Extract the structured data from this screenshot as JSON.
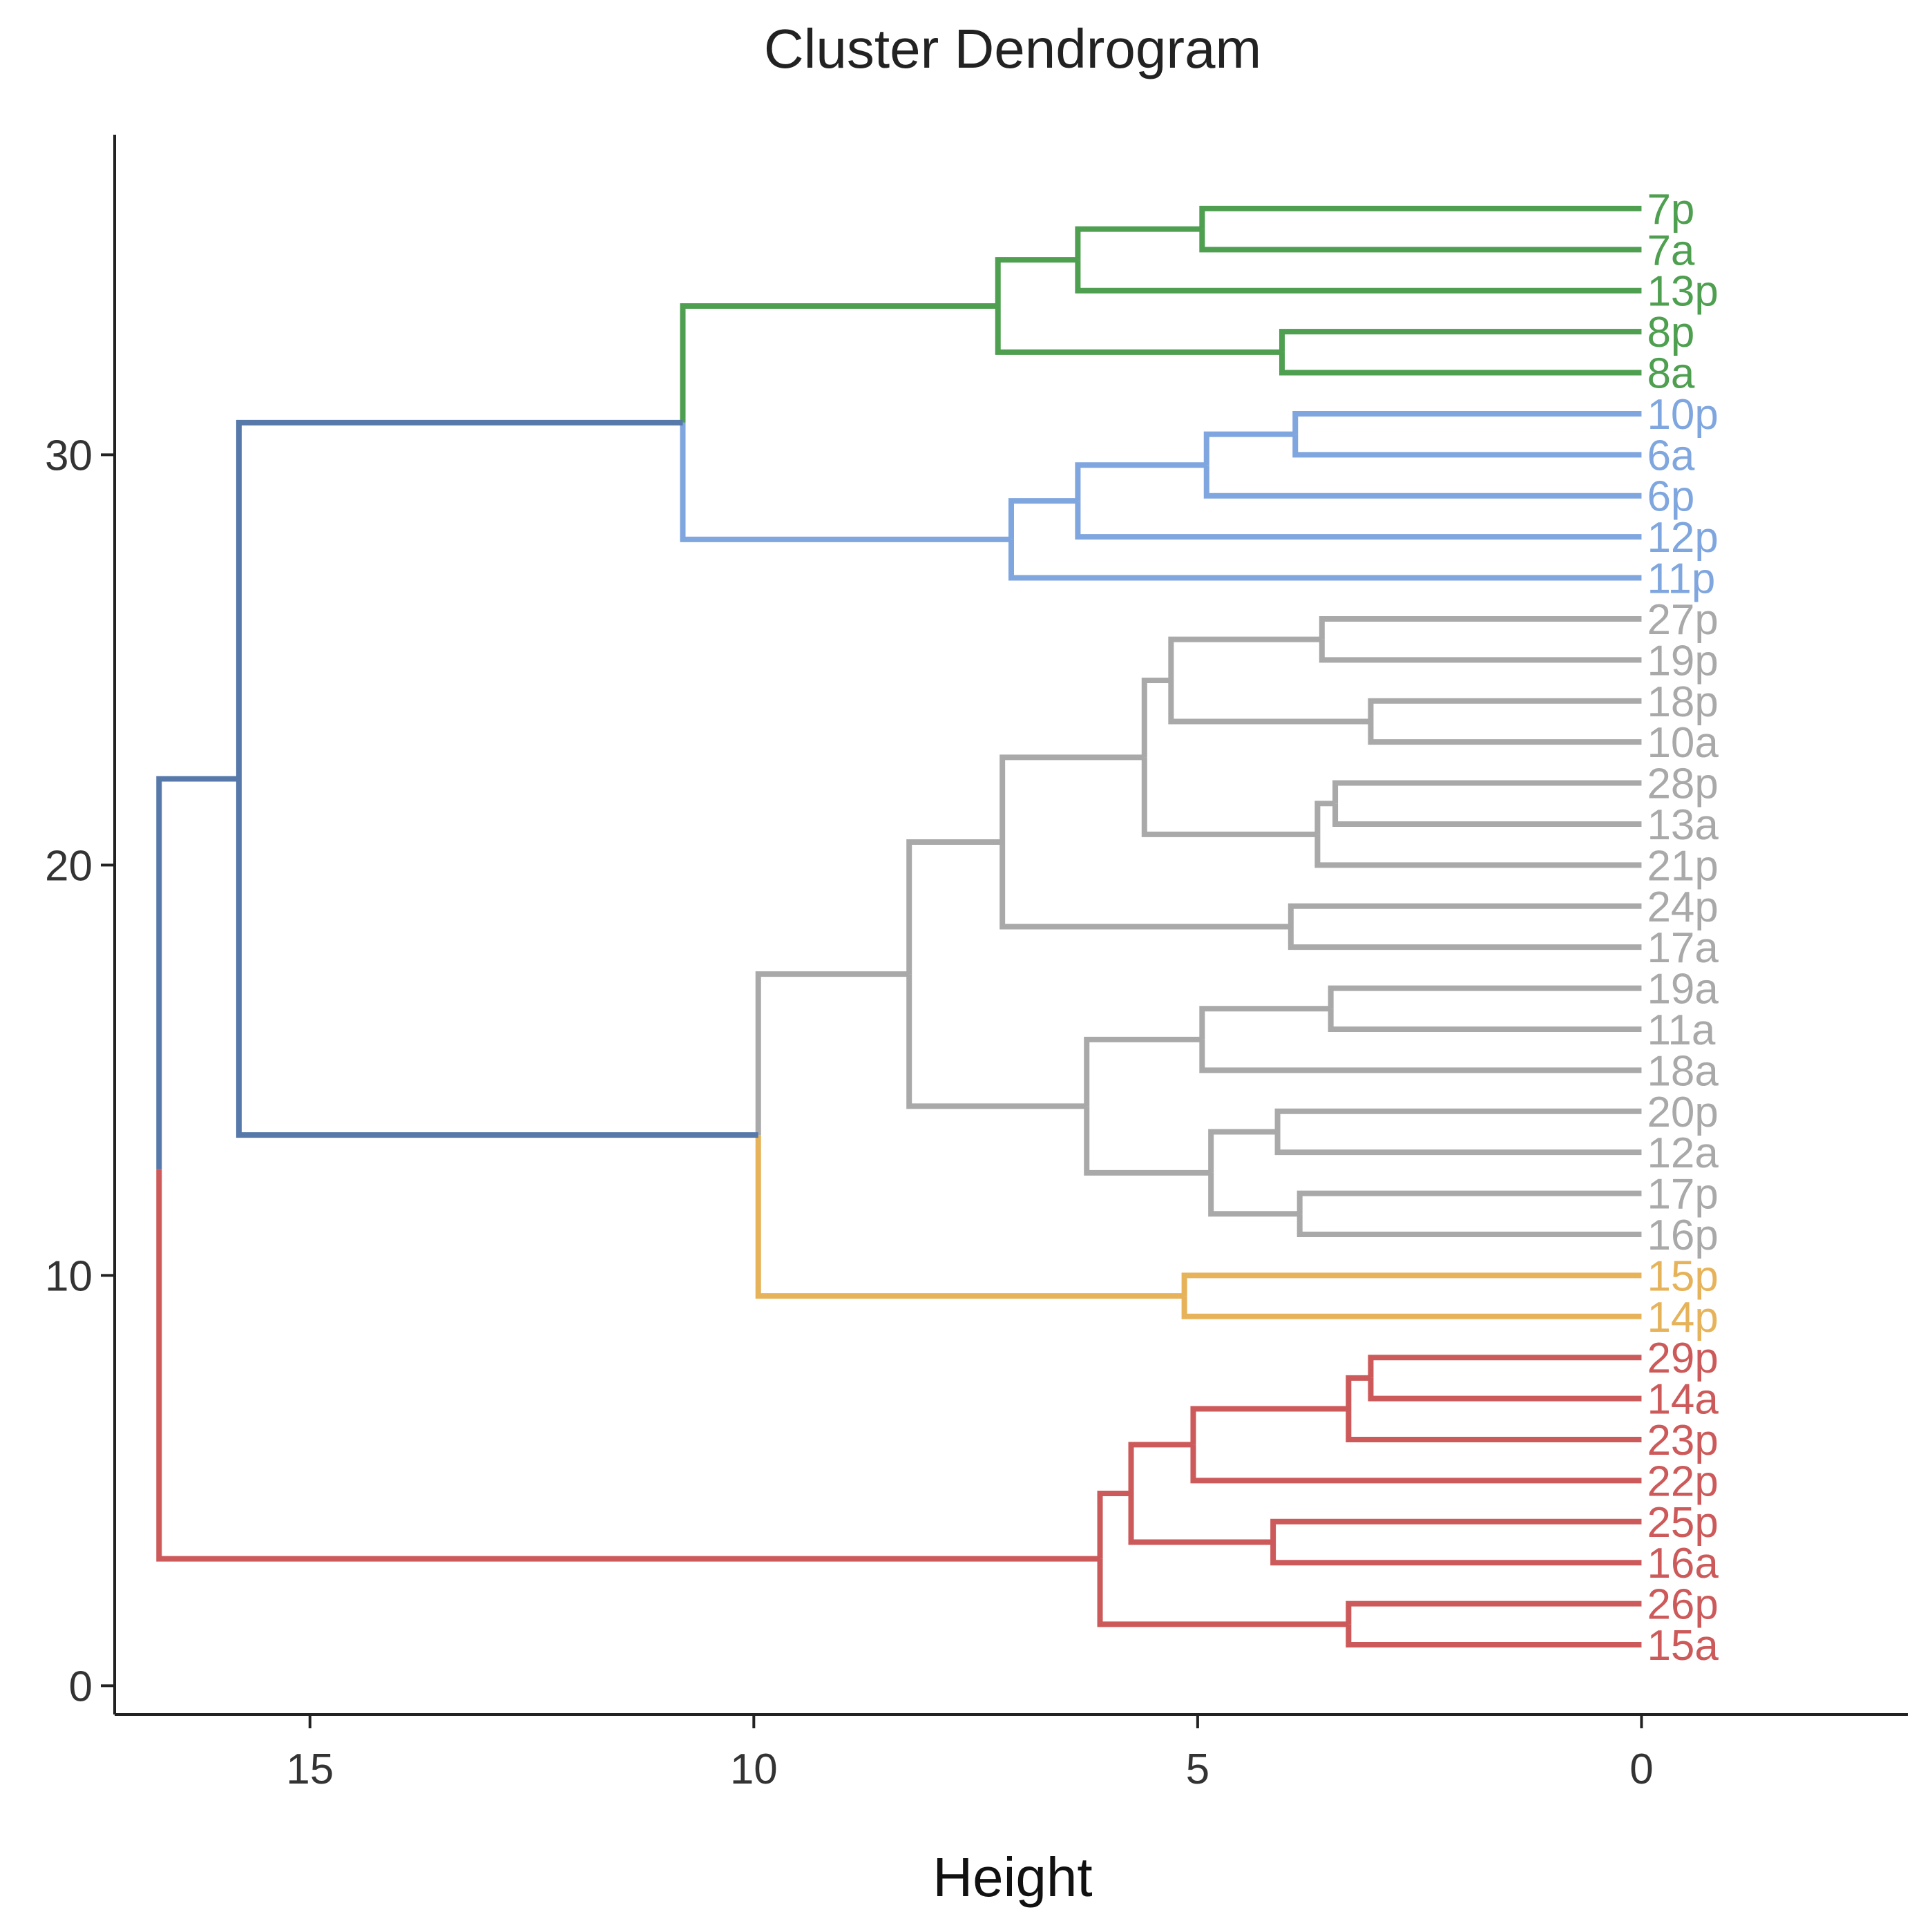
{
  "chart_data": {
    "type": "dendrogram",
    "title": "Cluster Dendrogram",
    "xlabel": "Height",
    "ylabel": "",
    "xlim": [
      17.2,
      -3
    ],
    "ylim": [
      -0.7,
      37.8
    ],
    "x_ticks": [
      15,
      10,
      5,
      0
    ],
    "y_ticks": [
      0,
      10,
      20,
      30
    ],
    "colors": {
      "green": "#4e9f50",
      "blue": "#7fa6de",
      "gray": "#a9a9a9",
      "orange": "#e6b35a",
      "red": "#cd5a5a",
      "navy": "#5679a9"
    },
    "leaves": [
      {
        "label": "15a",
        "pos": 1,
        "cluster": "red"
      },
      {
        "label": "26p",
        "pos": 2,
        "cluster": "red"
      },
      {
        "label": "16a",
        "pos": 3,
        "cluster": "red"
      },
      {
        "label": "25p",
        "pos": 4,
        "cluster": "red"
      },
      {
        "label": "22p",
        "pos": 5,
        "cluster": "red"
      },
      {
        "label": "23p",
        "pos": 6,
        "cluster": "red"
      },
      {
        "label": "14a",
        "pos": 7,
        "cluster": "red"
      },
      {
        "label": "29p",
        "pos": 8,
        "cluster": "red"
      },
      {
        "label": "14p",
        "pos": 9,
        "cluster": "orange"
      },
      {
        "label": "15p",
        "pos": 10,
        "cluster": "orange"
      },
      {
        "label": "16p",
        "pos": 11,
        "cluster": "gray"
      },
      {
        "label": "17p",
        "pos": 12,
        "cluster": "gray"
      },
      {
        "label": "12a",
        "pos": 13,
        "cluster": "gray"
      },
      {
        "label": "20p",
        "pos": 14,
        "cluster": "gray"
      },
      {
        "label": "18a",
        "pos": 15,
        "cluster": "gray"
      },
      {
        "label": "11a",
        "pos": 16,
        "cluster": "gray"
      },
      {
        "label": "19a",
        "pos": 17,
        "cluster": "gray"
      },
      {
        "label": "17a",
        "pos": 18,
        "cluster": "gray"
      },
      {
        "label": "24p",
        "pos": 19,
        "cluster": "gray"
      },
      {
        "label": "21p",
        "pos": 20,
        "cluster": "gray"
      },
      {
        "label": "13a",
        "pos": 21,
        "cluster": "gray"
      },
      {
        "label": "28p",
        "pos": 22,
        "cluster": "gray"
      },
      {
        "label": "10a",
        "pos": 23,
        "cluster": "gray"
      },
      {
        "label": "18p",
        "pos": 24,
        "cluster": "gray"
      },
      {
        "label": "19p",
        "pos": 25,
        "cluster": "gray"
      },
      {
        "label": "27p",
        "pos": 26,
        "cluster": "gray"
      },
      {
        "label": "11p",
        "pos": 27,
        "cluster": "blue"
      },
      {
        "label": "12p",
        "pos": 28,
        "cluster": "blue"
      },
      {
        "label": "6p",
        "pos": 29,
        "cluster": "blue"
      },
      {
        "label": "6a",
        "pos": 30,
        "cluster": "blue"
      },
      {
        "label": "10p",
        "pos": 31,
        "cluster": "blue"
      },
      {
        "label": "8a",
        "pos": 32,
        "cluster": "green"
      },
      {
        "label": "8p",
        "pos": 33,
        "cluster": "green"
      },
      {
        "label": "13p",
        "pos": 34,
        "cluster": "green"
      },
      {
        "label": "7a",
        "pos": 35,
        "cluster": "green"
      },
      {
        "label": "7p",
        "pos": 36,
        "cluster": "green"
      }
    ],
    "merges": [
      {
        "id": "g1",
        "height": 4.95,
        "children": [
          "7p",
          "7a"
        ],
        "color": "green"
      },
      {
        "id": "g2",
        "height": 6.35,
        "children": [
          "g1",
          "13p"
        ],
        "color": "green"
      },
      {
        "id": "g3",
        "height": 4.05,
        "children": [
          "8p",
          "8a"
        ],
        "color": "green"
      },
      {
        "id": "g4",
        "height": 7.25,
        "children": [
          "g2",
          "g3"
        ],
        "color": "green"
      },
      {
        "id": "b1",
        "height": 3.9,
        "children": [
          "10p",
          "6a"
        ],
        "color": "blue"
      },
      {
        "id": "b2",
        "height": 4.9,
        "children": [
          "b1",
          "6p"
        ],
        "color": "blue"
      },
      {
        "id": "b3",
        "height": 6.35,
        "children": [
          "b2",
          "12p"
        ],
        "color": "blue"
      },
      {
        "id": "b4",
        "height": 7.1,
        "children": [
          "b3",
          "11p"
        ],
        "color": "blue"
      },
      {
        "id": "gb",
        "height": 10.8,
        "children": [
          "g4",
          "b4"
        ],
        "color": [
          "green",
          "blue"
        ]
      },
      {
        "id": "y1",
        "height": 3.6,
        "children": [
          "27p",
          "19p"
        ],
        "color": "gray"
      },
      {
        "id": "y2",
        "height": 3.05,
        "children": [
          "18p",
          "10a"
        ],
        "color": "gray"
      },
      {
        "id": "y3",
        "height": 5.3,
        "children": [
          "y1",
          "y2"
        ],
        "color": "gray"
      },
      {
        "id": "y4",
        "height": 3.45,
        "children": [
          "28p",
          "13a"
        ],
        "color": "gray"
      },
      {
        "id": "y5",
        "height": 3.65,
        "children": [
          "y4",
          "21p"
        ],
        "color": "gray"
      },
      {
        "id": "y6",
        "height": 5.6,
        "children": [
          "y3",
          "y5"
        ],
        "color": "gray"
      },
      {
        "id": "y7",
        "height": 3.95,
        "children": [
          "24p",
          "17a"
        ],
        "color": "gray"
      },
      {
        "id": "y8",
        "height": 7.2,
        "children": [
          "y6",
          "y7"
        ],
        "color": "gray"
      },
      {
        "id": "y9",
        "height": 3.5,
        "children": [
          "19a",
          "11a"
        ],
        "color": "gray"
      },
      {
        "id": "y10",
        "height": 4.95,
        "children": [
          "y9",
          "18a"
        ],
        "color": "gray"
      },
      {
        "id": "y11",
        "height": 4.1,
        "children": [
          "20p",
          "12a"
        ],
        "color": "gray"
      },
      {
        "id": "y12",
        "height": 3.85,
        "children": [
          "17p",
          "16p"
        ],
        "color": "gray"
      },
      {
        "id": "y13",
        "height": 4.85,
        "children": [
          "y11",
          "y12"
        ],
        "color": "gray"
      },
      {
        "id": "y14",
        "height": 6.25,
        "children": [
          "y10",
          "y13"
        ],
        "color": "gray"
      },
      {
        "id": "y15",
        "height": 8.25,
        "children": [
          "y8",
          "y14"
        ],
        "color": "gray"
      },
      {
        "id": "o1",
        "height": 5.15,
        "children": [
          "15p",
          "14p"
        ],
        "color": "orange"
      },
      {
        "id": "yo",
        "height": 9.95,
        "children": [
          "y15",
          "o1"
        ],
        "color": [
          "gray",
          "orange"
        ]
      },
      {
        "id": "top",
        "height": 15.8,
        "children": [
          "gb",
          "yo"
        ],
        "color": "navy"
      },
      {
        "id": "r1",
        "height": 3.05,
        "children": [
          "29p",
          "14a"
        ],
        "color": "red"
      },
      {
        "id": "r2",
        "height": 3.3,
        "children": [
          "r1",
          "23p"
        ],
        "color": "red"
      },
      {
        "id": "r3",
        "height": 5.05,
        "children": [
          "r2",
          "22p"
        ],
        "color": "red"
      },
      {
        "id": "r4",
        "height": 4.15,
        "children": [
          "25p",
          "16a"
        ],
        "color": "red"
      },
      {
        "id": "r5",
        "height": 5.75,
        "children": [
          "r3",
          "r4"
        ],
        "color": "red"
      },
      {
        "id": "r6",
        "height": 3.3,
        "children": [
          "26p",
          "15a"
        ],
        "color": "red"
      },
      {
        "id": "r7",
        "height": 6.1,
        "children": [
          "r5",
          "r6"
        ],
        "color": "red"
      },
      {
        "id": "root",
        "height": 16.7,
        "children": [
          "top",
          "r7"
        ],
        "color": [
          "navy",
          "red"
        ]
      }
    ]
  }
}
